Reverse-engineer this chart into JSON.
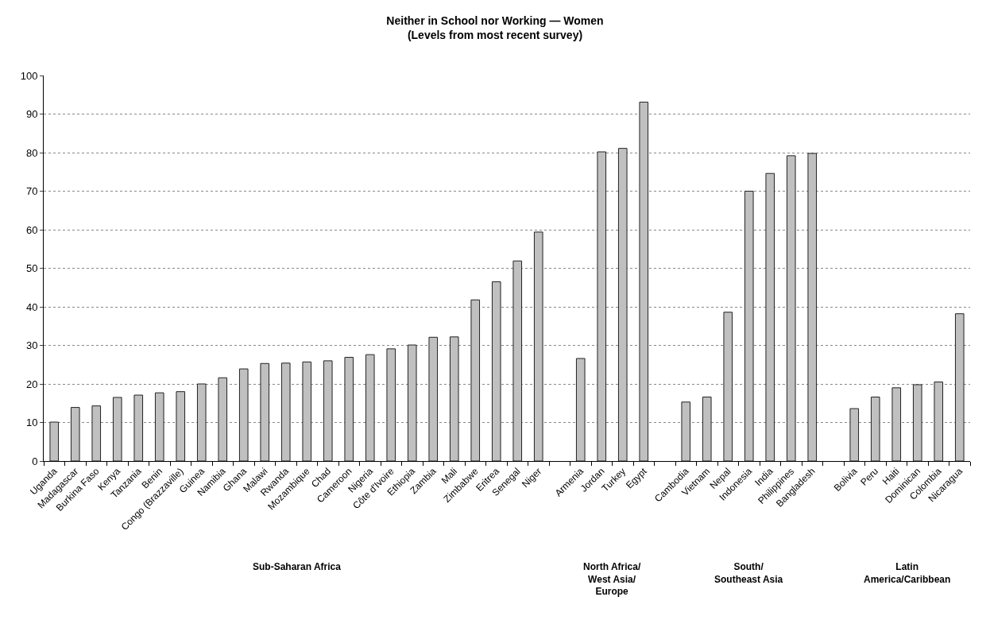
{
  "chart_data": {
    "type": "bar",
    "title": "Neither in School nor Working — Women\n(Levels from most recent survey)",
    "categories": [
      "Uganda",
      "Madagascar",
      "Burkina Faso",
      "Kenya",
      "Tanzania",
      "Benin",
      "Congo (Brazzaville)",
      "Guinea",
      "Namibia",
      "Ghana",
      "Malawi",
      "Rwanda",
      "Mozambique",
      "Chad",
      "Cameroon",
      "Nigeria",
      "Côte d'Ivoire",
      "Ethiopia",
      "Zambia",
      "Mali",
      "Zimbabwe",
      "Eritrea",
      "Senegal",
      "Niger",
      null,
      "Armenia",
      "Jordan",
      "Turkey",
      "Egypt",
      null,
      "Cambodia",
      "Vietnam",
      "Nepal",
      "Indonesia",
      "India",
      "Philippines",
      "Bangladesh",
      null,
      "Bolivia",
      "Peru",
      "Haiti",
      "Dominican",
      "Colombia",
      "Nicaragua"
    ],
    "values": [
      10.1,
      13.9,
      14.3,
      16.5,
      17.1,
      17.7,
      18.0,
      20.0,
      21.6,
      23.9,
      25.3,
      25.4,
      25.7,
      26.0,
      26.9,
      27.6,
      29.1,
      30.1,
      32.1,
      32.2,
      41.8,
      46.5,
      51.9,
      59.4,
      null,
      26.6,
      80.2,
      81.1,
      93.1,
      null,
      15.3,
      16.6,
      38.6,
      70.0,
      74.6,
      79.2,
      79.8,
      null,
      13.6,
      16.6,
      19.0,
      19.8,
      20.5,
      38.2
    ],
    "color": "#c0c0c0",
    "ylim": [
      0,
      100
    ],
    "yticks": [
      0,
      10,
      20,
      30,
      40,
      50,
      60,
      70,
      80,
      90,
      100
    ],
    "grid": "y",
    "annotations": [
      "Sub-Saharan Africa",
      "North Africa/\nWest Asia/\nEurope",
      "South/\nSoutheast Asia",
      "Latin\nAmerica/Caribbean"
    ]
  }
}
